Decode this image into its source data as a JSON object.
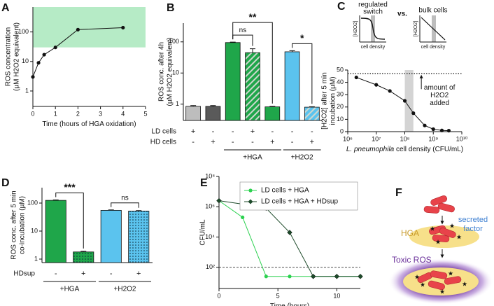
{
  "chart_data": [
    {
      "type": "line",
      "panel": "A",
      "ylabel": [
        "ROS concentration",
        "(µM H2O2 equivalent)"
      ],
      "xlabel": "Time (hours of HGA oxidation)",
      "x": [
        0,
        0.25,
        0.5,
        1,
        2,
        4
      ],
      "values": [
        3,
        9,
        17,
        30,
        120,
        140
      ],
      "color": "#111111",
      "marker": "circle",
      "xlim": [
        0,
        5
      ],
      "xticks": [
        0,
        1,
        2,
        3,
        4,
        5
      ],
      "ylim": [
        0.3,
        700
      ],
      "yticks": [
        1,
        10,
        100
      ],
      "ylog": true,
      "band": {
        "axis": "y",
        "range": [
          30,
          700
        ],
        "color": "#b6ebc6"
      }
    },
    {
      "type": "bar",
      "panel": "B",
      "ylabel": [
        "ROS conc. after 4h",
        "(µM H2O2 equivalent)"
      ],
      "values": [
        0.85,
        0.85,
        95,
        45,
        0.82,
        48,
        0.8
      ],
      "errors": [
        0.05,
        0.05,
        3,
        15,
        0.03,
        4,
        0.03
      ],
      "colors": [
        "#bdbdbd",
        "#5a5a5a",
        "#1fa64a",
        "#1fa64a",
        "#1fa64a",
        "#5bc3ee",
        "#5bc3ee"
      ],
      "fills": [
        "solid",
        "solid",
        "solid",
        "hatched",
        "solid",
        "solid",
        "hatched"
      ],
      "ylim": [
        0.3,
        400
      ],
      "yticks": [
        1,
        10,
        100
      ],
      "ylog": true,
      "rows": [
        {
          "name": "LD cells",
          "signs": [
            "+",
            "-",
            "-",
            "+",
            "-",
            "-",
            "-"
          ]
        },
        {
          "name": "HD cells",
          "signs": [
            "-",
            "+",
            "-",
            "-",
            "+",
            "-",
            "+"
          ]
        }
      ],
      "groups": [
        {
          "label": "+HGA",
          "from": 2,
          "to": 4
        },
        {
          "label": "+H2O2",
          "from": 5,
          "to": 6
        }
      ],
      "significance": [
        {
          "label": "ns",
          "from": 2,
          "to": 3
        },
        {
          "label": "**",
          "from": 2,
          "to": 4
        },
        {
          "label": "*",
          "from": 5,
          "to": 6
        }
      ]
    },
    {
      "type": "line",
      "panel": "C",
      "ylabel": [
        "[H2O2] after 5 min",
        "incubation (µM)"
      ],
      "xlabel_italic": "L. pneumophila",
      "xlabel": " cell density (CFU/mL)",
      "x": [
        2000000,
        10000000,
        30000000,
        100000000,
        200000000,
        500000000,
        1000000000,
        2000000000,
        3500000000
      ],
      "values": [
        44,
        38,
        33,
        25,
        15,
        5,
        2,
        1,
        0.8
      ],
      "color": "#111111",
      "marker": "circle",
      "xlim": [
        1000000,
        10000000000
      ],
      "xlog": true,
      "xticks": [
        {
          "value": 1000000,
          "label": "10⁶"
        },
        {
          "value": 10000000,
          "label": "10⁷"
        },
        {
          "value": 100000000,
          "label": "10⁸"
        },
        {
          "value": 1000000000,
          "label": "10⁹"
        },
        {
          "value": 10000000000,
          "label": "10¹⁰"
        }
      ],
      "ylim": [
        0,
        50
      ],
      "yticks": [
        0,
        10,
        20,
        30,
        40,
        50
      ],
      "band": {
        "axis": "x",
        "range": [
          100000000,
          200000000
        ],
        "color": "#d4d4d4"
      },
      "reference": {
        "value": 47,
        "label": [
          "amount of",
          "H2O2",
          "added"
        ]
      }
    },
    {
      "type": "bar",
      "panel": "D",
      "ylabel": [
        "ROS conc. after 5 min",
        "co-incubation (µM)"
      ],
      "values": [
        125,
        1.8,
        55,
        52
      ],
      "errors": [
        5,
        0.1,
        2,
        2
      ],
      "colors": [
        "#1fa64a",
        "#1fa64a",
        "#5bc3ee",
        "#5bc3ee"
      ],
      "fills": [
        "solid",
        "dotted",
        "solid",
        "dotted"
      ],
      "ylim": [
        0.75,
        355
      ],
      "yticks": [
        1,
        10,
        100
      ],
      "ylog": true,
      "rows": [
        {
          "name": "HDsup",
          "signs": [
            "-",
            "+",
            "-",
            "+"
          ]
        }
      ],
      "groups": [
        {
          "label": "+HGA",
          "from": 0,
          "to": 1
        },
        {
          "label": "+H2O2",
          "from": 2,
          "to": 3
        }
      ],
      "significance": [
        {
          "label": "***",
          "from": 0,
          "to": 1
        },
        {
          "label": "ns",
          "from": 2,
          "to": 3
        }
      ]
    },
    {
      "type": "line",
      "panel": "E",
      "ylabel": [
        "CFU/mL"
      ],
      "xlabel": "Time (hours)",
      "x": [
        0,
        2,
        4,
        6,
        8,
        10,
        12
      ],
      "series": [
        {
          "name": "LD cells + HGA",
          "color": "#2bd14f",
          "marker": "circle",
          "values": [
            2500000,
            200000,
            25,
            25,
            25,
            25,
            25
          ]
        },
        {
          "name": "LD cells + HGA + HDsup",
          "color": "#1d4a2a",
          "marker": "diamond",
          "values": [
            2500000,
            1500000,
            800000,
            20000,
            25,
            25,
            25
          ]
        }
      ],
      "xlim": [
        0,
        12
      ],
      "xticks": [
        0,
        5,
        10
      ],
      "ylim": [
        4,
        100000000
      ],
      "ylog": true,
      "yticks": [
        {
          "value": 100,
          "label": "10²"
        },
        {
          "value": 10000,
          "label": "10⁴"
        },
        {
          "value": 1000000,
          "label": "10⁶"
        },
        {
          "value": 100000000,
          "label": "10⁸"
        }
      ],
      "reference": {
        "value": 100
      },
      "legend": "upper right"
    }
  ],
  "insets": {
    "left_title": [
      "regulated",
      "switch"
    ],
    "vs": "vs.",
    "right_title": "bulk cells",
    "y_label": "[H2O2]",
    "x_label": "cell density"
  },
  "diagram": {
    "panel": "F",
    "hga": "HGA",
    "secreted_factor": [
      "secreted",
      "factor"
    ],
    "toxic_ros": "Toxic ROS"
  }
}
